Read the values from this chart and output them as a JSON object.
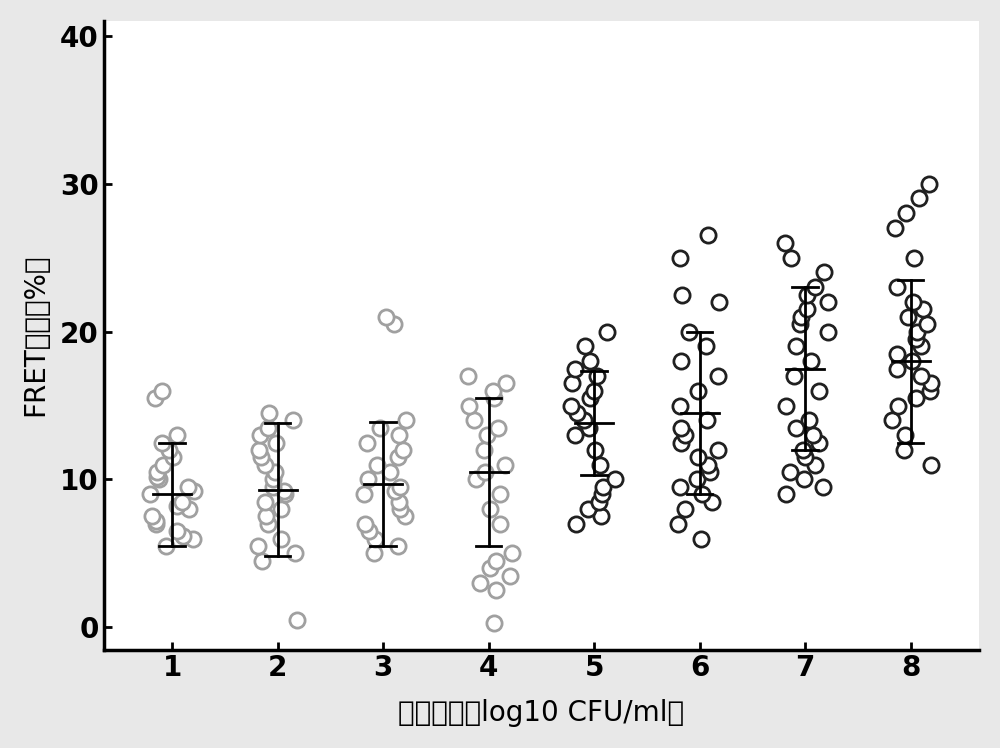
{
  "xlabel": "细菌浓度（log10 CFU/ml）",
  "ylabel": "FRET效率（%）",
  "xlim": [
    0.35,
    8.65
  ],
  "ylim": [
    -1.5,
    41
  ],
  "yticks": [
    0,
    10,
    20,
    30,
    40
  ],
  "xticks": [
    1,
    2,
    3,
    4,
    5,
    6,
    7,
    8
  ],
  "means": [
    9.0,
    9.3,
    9.7,
    10.5,
    13.8,
    14.5,
    17.5,
    18.0
  ],
  "stds": [
    3.5,
    4.5,
    4.2,
    5.0,
    3.5,
    5.5,
    5.5,
    5.5
  ],
  "light_edgecolor": "#a0a0a0",
  "dark_edgecolor": "#202020",
  "dot_size": 120,
  "marker_lw": 2.0,
  "errbar_lw": 2.0,
  "mean_halfwidth": 0.18,
  "cap_halfwidth": 0.12,
  "figure_bg": "#e8e8e8",
  "plot_bg": "#ffffff",
  "xlabel_fontsize": 20,
  "ylabel_fontsize": 20,
  "tick_fontsize": 20,
  "spine_lw": 2.5,
  "data_points": {
    "1": [
      5.5,
      6.0,
      6.2,
      6.5,
      7.0,
      7.2,
      7.5,
      8.0,
      8.2,
      8.5,
      9.0,
      9.2,
      9.5,
      10.0,
      10.2,
      10.5,
      11.0,
      11.5,
      12.0,
      12.5,
      13.0,
      15.5,
      16.0
    ],
    "2": [
      0.5,
      4.5,
      5.0,
      5.5,
      6.0,
      7.0,
      7.5,
      8.0,
      8.5,
      9.0,
      9.2,
      9.5,
      10.0,
      10.5,
      11.0,
      11.5,
      12.0,
      12.5,
      13.0,
      13.5,
      14.0,
      14.5
    ],
    "3": [
      5.0,
      5.5,
      6.0,
      6.5,
      7.0,
      7.5,
      8.0,
      8.5,
      9.0,
      9.2,
      9.5,
      10.0,
      10.5,
      11.0,
      11.5,
      12.0,
      12.5,
      13.0,
      13.5,
      14.0,
      20.5,
      21.0
    ],
    "4": [
      0.3,
      2.5,
      3.0,
      3.5,
      4.0,
      4.5,
      5.0,
      7.0,
      8.0,
      9.0,
      10.0,
      10.5,
      11.0,
      12.0,
      13.0,
      13.5,
      14.0,
      15.0,
      15.5,
      16.0,
      16.5,
      17.0
    ],
    "5": [
      7.0,
      7.5,
      8.0,
      8.5,
      9.0,
      9.5,
      10.0,
      11.0,
      12.0,
      13.0,
      13.5,
      14.0,
      14.5,
      15.0,
      15.5,
      16.0,
      16.5,
      17.0,
      17.5,
      18.0,
      19.0,
      20.0
    ],
    "6": [
      6.0,
      7.0,
      8.0,
      8.5,
      9.0,
      9.5,
      10.0,
      10.5,
      11.0,
      11.5,
      12.0,
      12.5,
      13.0,
      13.5,
      14.0,
      15.0,
      16.0,
      17.0,
      18.0,
      19.0,
      20.0,
      22.0,
      22.5,
      25.0,
      26.5
    ],
    "7": [
      9.0,
      9.5,
      10.0,
      10.5,
      11.0,
      11.5,
      12.0,
      12.5,
      13.0,
      13.5,
      14.0,
      15.0,
      16.0,
      17.0,
      18.0,
      19.0,
      20.0,
      20.5,
      21.0,
      21.5,
      22.0,
      22.5,
      23.0,
      24.0,
      25.0,
      26.0
    ],
    "8": [
      11.0,
      12.0,
      13.0,
      14.0,
      15.0,
      15.5,
      16.0,
      16.5,
      17.0,
      17.5,
      18.0,
      18.5,
      19.0,
      19.5,
      20.0,
      20.5,
      21.0,
      21.5,
      22.0,
      23.0,
      25.0,
      27.0,
      28.0,
      29.0,
      30.0
    ]
  }
}
